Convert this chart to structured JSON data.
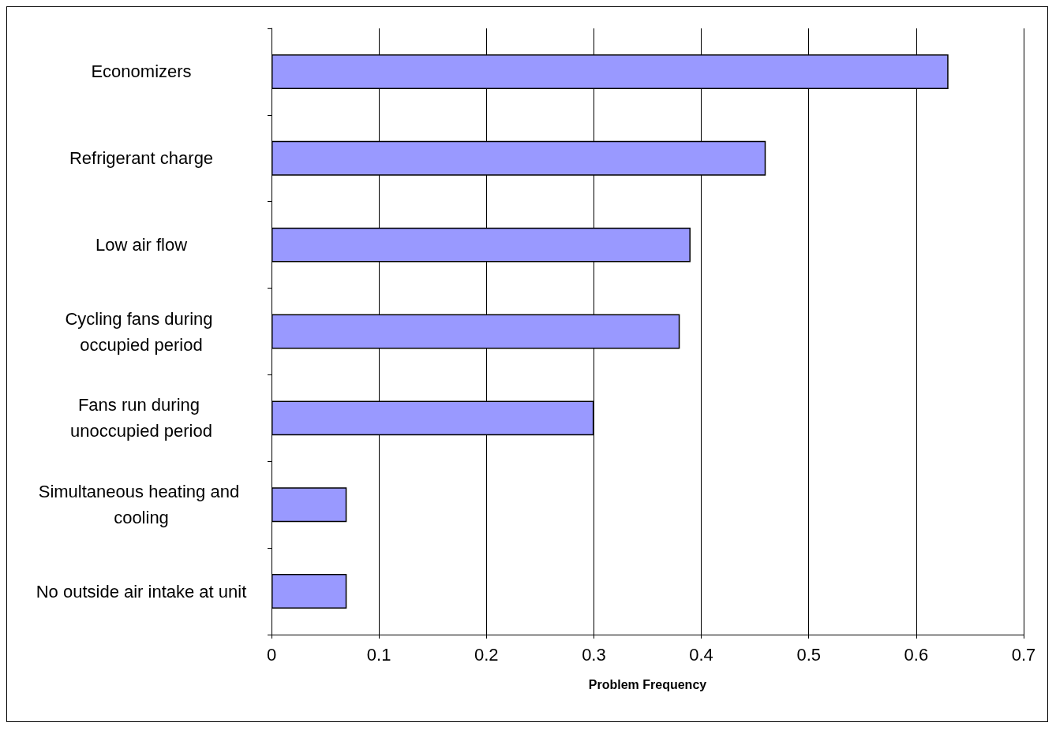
{
  "chart_data": {
    "type": "bar",
    "orientation": "horizontal",
    "xlabel": "Problem Frequency",
    "categories": [
      "Economizers",
      "Refrigerant charge",
      "Low air flow",
      "Cycling fans during occupied period",
      "Fans run during unoccupied period",
      "Simultaneous heating and cooling",
      "No outside air intake at unit"
    ],
    "values": [
      0.63,
      0.46,
      0.39,
      0.38,
      0.3,
      0.07,
      0.07
    ],
    "color": "#9999ff",
    "xlim": [
      0,
      0.7
    ],
    "xticks": [
      0,
      0.1,
      0.2,
      0.3,
      0.4,
      0.5,
      0.6,
      0.7
    ],
    "grid": "x"
  }
}
